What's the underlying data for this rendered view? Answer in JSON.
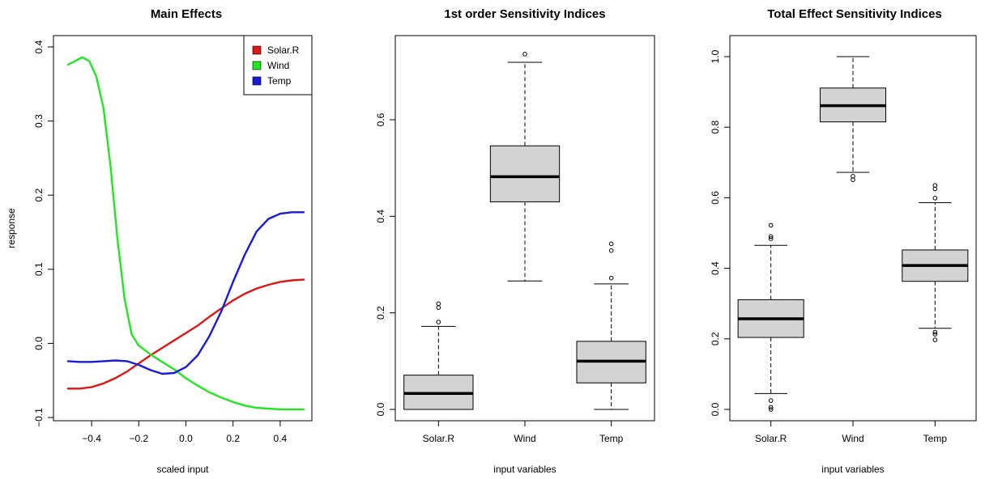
{
  "chart_data": [
    {
      "type": "line",
      "title": "Main Effects",
      "xlabel": "scaled input",
      "ylabel": "response",
      "xlim": [
        -0.5,
        0.5
      ],
      "ylim": [
        -0.1,
        0.4
      ],
      "xticks": [
        -0.4,
        -0.2,
        0.0,
        0.2,
        0.4
      ],
      "xtick_labels": [
        "−0.4",
        "−0.2",
        "0.0",
        "0.2",
        "0.4"
      ],
      "yticks": [
        -0.1,
        0.0,
        0.1,
        0.2,
        0.3,
        0.4
      ],
      "ytick_labels": [
        "−0.1",
        "0.0",
        "0.1",
        "0.2",
        "0.3",
        "0.4"
      ],
      "legend_position": "top-right",
      "grid": false,
      "series": [
        {
          "name": "Solar.R",
          "color": "#df1616",
          "x": [
            -0.5,
            -0.45,
            -0.4,
            -0.35,
            -0.3,
            -0.25,
            -0.2,
            -0.15,
            -0.1,
            -0.05,
            0.0,
            0.05,
            0.1,
            0.15,
            0.2,
            0.25,
            0.3,
            0.35,
            0.4,
            0.45,
            0.5
          ],
          "y": [
            -0.061,
            -0.061,
            -0.059,
            -0.054,
            -0.047,
            -0.038,
            -0.027,
            -0.016,
            -0.006,
            0.004,
            0.014,
            0.024,
            0.036,
            0.047,
            0.058,
            0.067,
            0.074,
            0.079,
            0.083,
            0.085,
            0.086
          ]
        },
        {
          "name": "Wind",
          "color": "#22e622",
          "x": [
            -0.5,
            -0.47,
            -0.44,
            -0.41,
            -0.38,
            -0.35,
            -0.32,
            -0.29,
            -0.26,
            -0.23,
            -0.2,
            -0.15,
            -0.1,
            -0.05,
            0.0,
            0.05,
            0.1,
            0.15,
            0.2,
            0.25,
            0.3,
            0.35,
            0.4,
            0.45,
            0.5
          ],
          "y": [
            0.376,
            0.381,
            0.386,
            0.381,
            0.36,
            0.318,
            0.24,
            0.14,
            0.06,
            0.012,
            -0.003,
            -0.015,
            -0.025,
            -0.035,
            -0.047,
            -0.057,
            -0.066,
            -0.073,
            -0.079,
            -0.084,
            -0.087,
            -0.088,
            -0.089,
            -0.089,
            -0.089
          ]
        },
        {
          "name": "Temp",
          "color": "#1a1ad9",
          "x": [
            -0.5,
            -0.45,
            -0.4,
            -0.35,
            -0.3,
            -0.25,
            -0.2,
            -0.15,
            -0.1,
            -0.05,
            0.0,
            0.05,
            0.1,
            0.15,
            0.2,
            0.25,
            0.3,
            0.35,
            0.4,
            0.45,
            0.5
          ],
          "y": [
            -0.024,
            -0.025,
            -0.025,
            -0.024,
            -0.023,
            -0.024,
            -0.029,
            -0.036,
            -0.041,
            -0.04,
            -0.032,
            -0.016,
            0.01,
            0.043,
            0.083,
            0.12,
            0.151,
            0.168,
            0.175,
            0.177,
            0.177
          ]
        }
      ]
    },
    {
      "type": "box",
      "title": "1st order Sensitivity Indices",
      "xlabel": "input variables",
      "ylabel": "",
      "ylim": [
        0.0,
        0.74
      ],
      "yticks": [
        0.0,
        0.2,
        0.4,
        0.6
      ],
      "ytick_labels": [
        "0.0",
        "0.2",
        "0.4",
        "0.6"
      ],
      "categories": [
        "Solar.R",
        "Wind",
        "Temp"
      ],
      "boxes": [
        {
          "whisker_low": 0.0,
          "q1": 0.0,
          "median": 0.033,
          "q3": 0.071,
          "whisker_high": 0.172,
          "outliers": [
            0.181,
            0.211,
            0.219
          ]
        },
        {
          "whisker_low": 0.266,
          "q1": 0.43,
          "median": 0.482,
          "q3": 0.546,
          "whisker_high": 0.719,
          "outliers": [
            0.736
          ]
        },
        {
          "whisker_low": 0.0,
          "q1": 0.055,
          "median": 0.1,
          "q3": 0.141,
          "whisker_high": 0.26,
          "outliers": [
            0.272,
            0.329,
            0.343
          ]
        }
      ]
    },
    {
      "type": "box",
      "title": "Total Effect Sensitivity Indices",
      "xlabel": "input variables",
      "ylabel": "",
      "ylim": [
        0.0,
        1.0
      ],
      "yticks": [
        0.0,
        0.2,
        0.4,
        0.6,
        0.8,
        1.0
      ],
      "ytick_labels": [
        "0.0",
        "0.2",
        "0.4",
        "0.6",
        "0.8",
        "1.0"
      ],
      "categories": [
        "Solar.R",
        "Wind",
        "Temp"
      ],
      "boxes": [
        {
          "whisker_low": 0.045,
          "q1": 0.204,
          "median": 0.257,
          "q3": 0.311,
          "whisker_high": 0.465,
          "outliers": [
            0.0,
            0.006,
            0.025,
            0.484,
            0.49,
            0.522
          ]
        },
        {
          "whisker_low": 0.672,
          "q1": 0.815,
          "median": 0.861,
          "q3": 0.911,
          "whisker_high": 1.0,
          "outliers": [
            0.651,
            0.661
          ]
        },
        {
          "whisker_low": 0.23,
          "q1": 0.363,
          "median": 0.408,
          "q3": 0.452,
          "whisker_high": 0.586,
          "outliers": [
            0.197,
            0.213,
            0.219,
            0.599,
            0.625,
            0.635
          ]
        }
      ]
    }
  ]
}
